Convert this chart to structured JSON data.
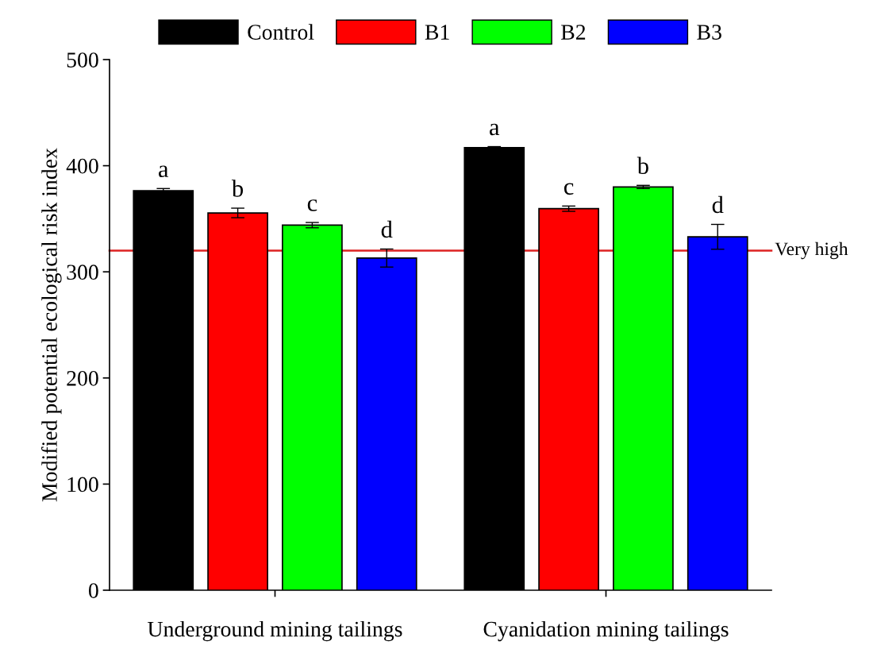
{
  "chart_data": {
    "type": "bar",
    "ylabel": "Modified potential ecological risk index",
    "categories": [
      "Underground mining tailings",
      "Cyanidation mining tailings"
    ],
    "series": [
      {
        "name": "Control",
        "color": "#000000",
        "values": [
          376.5,
          417
        ],
        "errors": [
          2,
          1
        ]
      },
      {
        "name": "B1",
        "color": "#ff0000",
        "values": [
          355.5,
          359.5
        ],
        "errors": [
          4.5,
          2.5
        ]
      },
      {
        "name": "B2",
        "color": "#00ff00",
        "values": [
          344,
          380
        ],
        "errors": [
          2.5,
          1.5
        ]
      },
      {
        "name": "B3",
        "color": "#0000ff",
        "values": [
          313,
          333
        ],
        "errors": [
          8.5,
          11.7
        ]
      }
    ],
    "ylim": [
      0,
      500
    ],
    "yticks": [
      0,
      100,
      200,
      300,
      400,
      500
    ],
    "grid": false,
    "legend": "top",
    "ref_lines": [
      {
        "axis": "y",
        "value": 320,
        "label": "Very high",
        "color": "#dd2222"
      }
    ],
    "annotations": [
      "a",
      "b",
      "c",
      "d",
      "a",
      "c",
      "b",
      "d"
    ]
  }
}
